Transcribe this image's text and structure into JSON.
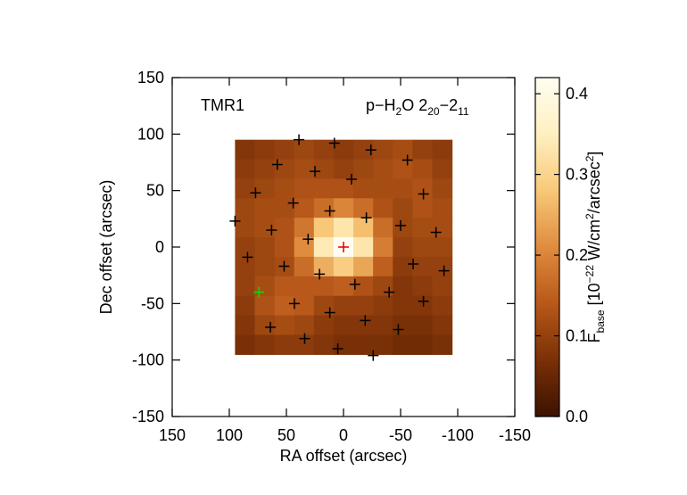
{
  "chart_data": {
    "type": "map",
    "label": "TMR1",
    "line_label": [
      "p−H",
      "2",
      "O 2",
      "20",
      "−2",
      "11"
    ],
    "xlabel": "RA offset (arcsec)",
    "ylabel": "Dec offset (arcsec)",
    "colorbar_label": [
      "F",
      "base",
      " [10",
      "−22",
      " W/cm",
      "2",
      "/arcsec",
      "2",
      "]"
    ],
    "xlim": [
      150,
      -150
    ],
    "xticks": [
      150,
      100,
      50,
      0,
      -50,
      -100,
      -150
    ],
    "ylim": [
      -150,
      150
    ],
    "yticks": [
      -150,
      -100,
      -50,
      0,
      50,
      100,
      150
    ],
    "map_xlim": [
      95,
      -95
    ],
    "map_ylim": [
      95,
      -95
    ],
    "z": [
      [
        0.08,
        0.09,
        0.1,
        0.11,
        0.1,
        0.09,
        0.1,
        0.11,
        0.12,
        0.1,
        0.09
      ],
      [
        0.09,
        0.1,
        0.11,
        0.12,
        0.11,
        0.1,
        0.11,
        0.12,
        0.13,
        0.12,
        0.1
      ],
      [
        0.1,
        0.11,
        0.12,
        0.13,
        0.13,
        0.13,
        0.12,
        0.12,
        0.12,
        0.13,
        0.11
      ],
      [
        0.11,
        0.12,
        0.12,
        0.14,
        0.17,
        0.2,
        0.17,
        0.13,
        0.11,
        0.13,
        0.12
      ],
      [
        0.11,
        0.12,
        0.13,
        0.18,
        0.28,
        0.33,
        0.27,
        0.17,
        0.11,
        0.12,
        0.12
      ],
      [
        0.1,
        0.11,
        0.13,
        0.21,
        0.34,
        0.42,
        0.33,
        0.19,
        0.1,
        0.11,
        0.11
      ],
      [
        0.1,
        0.11,
        0.12,
        0.17,
        0.25,
        0.29,
        0.24,
        0.15,
        0.09,
        0.1,
        0.1
      ],
      [
        0.1,
        0.12,
        0.14,
        0.14,
        0.14,
        0.15,
        0.13,
        0.11,
        0.08,
        0.09,
        0.1
      ],
      [
        0.09,
        0.13,
        0.15,
        0.14,
        0.11,
        0.1,
        0.1,
        0.09,
        0.08,
        0.08,
        0.09
      ],
      [
        0.08,
        0.11,
        0.12,
        0.11,
        0.09,
        0.08,
        0.08,
        0.08,
        0.07,
        0.07,
        0.08
      ],
      [
        0.07,
        0.08,
        0.09,
        0.09,
        0.08,
        0.07,
        0.07,
        0.07,
        0.06,
        0.06,
        0.07
      ]
    ],
    "clim": [
      0,
      0.42
    ],
    "cticks": [
      {
        "value": 0,
        "label": "0.0"
      },
      0.1,
      0.2,
      0.3,
      0.4
    ],
    "colormap": [
      "#3c1200",
      "#7a3006",
      "#b8581a",
      "#e08c3e",
      "#f8c878",
      "#fff0c0",
      "#fffdf2"
    ],
    "markers": [
      {
        "color": "#000000",
        "x": [
          39,
          8,
          -24,
          58,
          25,
          -56,
          77,
          -7,
          44,
          -70,
          12,
          95,
          -20,
          -50,
          63,
          -81,
          31,
          84,
          52,
          -61,
          -88,
          21,
          -10,
          -40,
          43,
          -70,
          12,
          -19,
          64,
          -48,
          34,
          5,
          -26
        ],
        "y": [
          95,
          92,
          86,
          73,
          67,
          77,
          48,
          60,
          39,
          47,
          32,
          23,
          26,
          19,
          15,
          13,
          7,
          -9,
          -17,
          -15,
          -21,
          -24,
          -33,
          -40,
          -50,
          -48,
          -58,
          -65,
          -71,
          -73,
          -81,
          -90,
          -96
        ]
      },
      {
        "color": "#e00000",
        "x": [
          0
        ],
        "y": [
          0
        ]
      },
      {
        "color": "#00e000",
        "x": [
          74
        ],
        "y": [
          -40
        ]
      }
    ]
  }
}
